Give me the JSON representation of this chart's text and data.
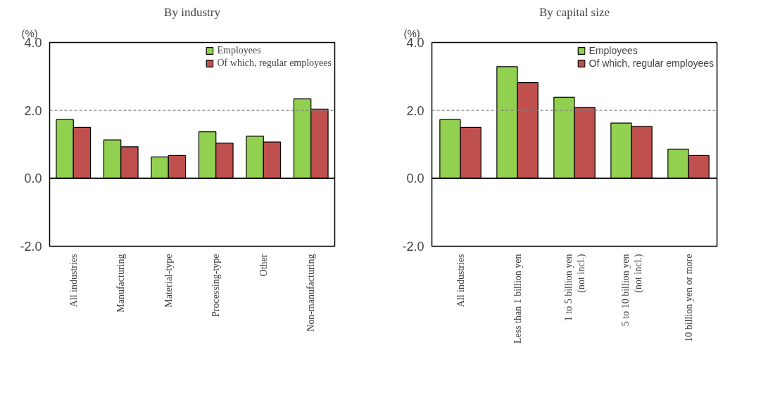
{
  "chart_data": [
    {
      "type": "bar",
      "title": "By industry",
      "ylabel": "(%)",
      "categories": [
        "All industries",
        "Manufacturing",
        "Material-type",
        "Processing-type",
        "Other",
        "Non-manufacturing"
      ],
      "series": [
        {
          "name": "Employees",
          "color": "#92d050",
          "values": [
            1.73,
            1.13,
            0.63,
            1.37,
            1.24,
            2.34
          ]
        },
        {
          "name": "Of which, regular employees",
          "color": "#c0504d",
          "values": [
            1.5,
            0.93,
            0.67,
            1.04,
            1.07,
            2.04
          ]
        }
      ],
      "ylim": [
        -2,
        4
      ],
      "yticks": [
        {
          "value": -2,
          "label": "-2.0"
        },
        {
          "value": 0,
          "label": "0.0"
        },
        {
          "value": 2,
          "label": "2.0"
        },
        {
          "value": 4,
          "label": "4.0"
        }
      ],
      "ref_lines": [
        {
          "axis": "y",
          "value": 2,
          "color": "#808080",
          "line_style": "dashed"
        },
        {
          "axis": "y",
          "value": 0,
          "color": "#000000",
          "line_style": "solid"
        }
      ],
      "grid": false,
      "legend": "top right"
    },
    {
      "type": "bar",
      "title": "By capital size",
      "ylabel": "(%)",
      "categories": [
        "All industries",
        "Less than 1 billion yen",
        "1 to 5 billion yen\n(not incl.)",
        "5 to 10 billion yen\n(not incl.)",
        "10 billion yen or more"
      ],
      "series": [
        {
          "name": "Employees",
          "color": "#92d050",
          "values": [
            1.73,
            3.29,
            2.39,
            1.63,
            0.86
          ]
        },
        {
          "name": "Of which, regular employees",
          "color": "#c0504d",
          "values": [
            1.5,
            2.82,
            2.09,
            1.53,
            0.67
          ]
        }
      ],
      "ylim": [
        -2,
        4
      ],
      "yticks": [
        {
          "value": -2,
          "label": "-2.0"
        },
        {
          "value": 0,
          "label": "0.0"
        },
        {
          "value": 2,
          "label": "2.0"
        },
        {
          "value": 4,
          "label": "4.0"
        }
      ],
      "ref_lines": [
        {
          "axis": "y",
          "value": 2,
          "color": "#808080",
          "line_style": "dashed"
        },
        {
          "axis": "y",
          "value": 0,
          "color": "#000000",
          "line_style": "solid"
        }
      ],
      "grid": false,
      "legend": "top right"
    }
  ]
}
